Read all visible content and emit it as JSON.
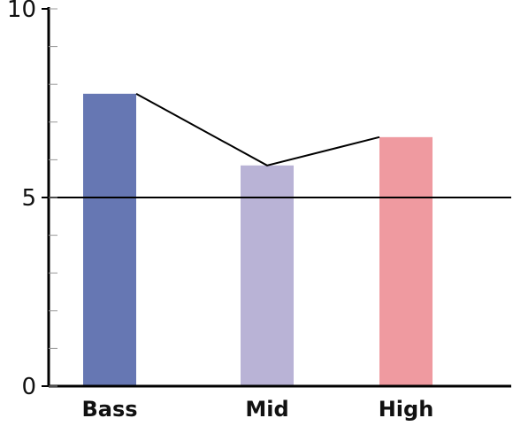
{
  "chart_data": {
    "type": "bar",
    "categories": [
      "Bass",
      "Mid",
      "High"
    ],
    "values": [
      7.75,
      5.85,
      6.6
    ],
    "colors": [
      "#6677b3",
      "#b9b3d6",
      "#ef9aa0"
    ],
    "line_overlay": true,
    "line_color": "#000000",
    "title": "",
    "xlabel": "",
    "ylabel": "",
    "ylim": [
      0,
      10
    ],
    "yticks": [
      {
        "value": 0,
        "label": "0"
      },
      {
        "value": 5,
        "label": "5"
      },
      {
        "value": 10,
        "label": "10"
      }
    ],
    "minor_ytick_step": 1,
    "reference_line": 5,
    "grid": false,
    "legend": "none"
  }
}
